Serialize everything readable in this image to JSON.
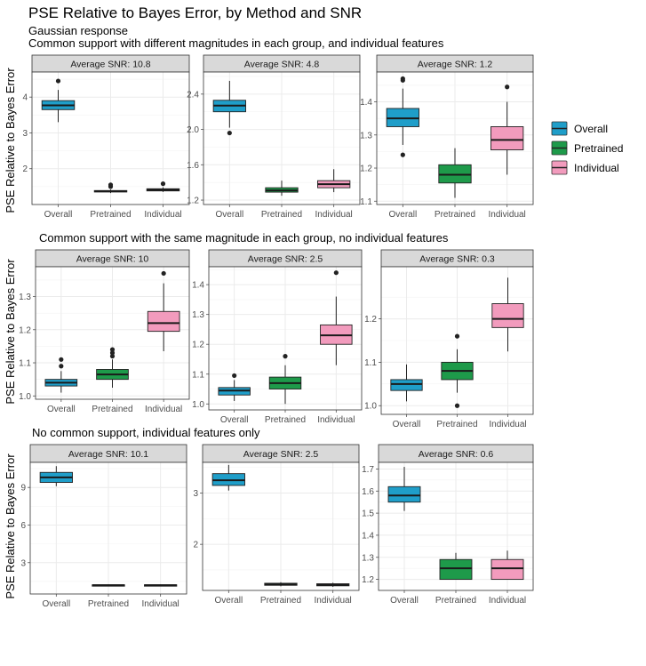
{
  "title": "PSE Relative to Bayes Error, by Method and SNR",
  "subtitle_line1": "Gaussian response",
  "section_labels": [
    "Common support with different magnitudes in each group, and individual features",
    "Common support with the same magnitude in each group, no individual features",
    "No common support, individual features only"
  ],
  "ylabel": "PSE Relative to Bayes Error",
  "legend": [
    {
      "label": "Overall",
      "color": "#1f9ec9"
    },
    {
      "label": "Pretrained",
      "color": "#1e9a4a"
    },
    {
      "label": "Individual",
      "color": "#f29bbd"
    }
  ],
  "colors": {
    "panel_bg": "#ffffff",
    "strip_bg": "#d9d9d9",
    "grid": "#ebebeb",
    "border": "#333333"
  },
  "chart_data": [
    {
      "type": "box",
      "strip": "Average SNR: 10.8",
      "categories": [
        "Overall",
        "Pretrained",
        "Individual"
      ],
      "ylim": [
        1.0,
        4.7
      ],
      "yticks": [
        2,
        3,
        4
      ],
      "ytick_labels": [
        "2",
        "3",
        "4"
      ],
      "boxes": [
        {
          "min": 3.3,
          "q1": 3.65,
          "median": 3.77,
          "q3": 3.9,
          "max": 4.2,
          "outliers": [
            4.45
          ]
        },
        {
          "min": 1.32,
          "q1": 1.35,
          "median": 1.37,
          "q3": 1.39,
          "max": 1.42,
          "outliers": [
            1.5,
            1.55
          ]
        },
        {
          "min": 1.35,
          "q1": 1.38,
          "median": 1.41,
          "q3": 1.44,
          "max": 1.48,
          "outliers": [
            1.58
          ]
        }
      ]
    },
    {
      "type": "box",
      "strip": "Average SNR: 4.8",
      "categories": [
        "Overall",
        "Pretrained",
        "Individual"
      ],
      "ylim": [
        1.15,
        2.65
      ],
      "yticks": [
        1.2,
        1.6,
        2.0,
        2.4
      ],
      "ytick_labels": [
        "1.2",
        "1.6",
        "2.0",
        "2.4"
      ],
      "boxes": [
        {
          "min": 2.02,
          "q1": 2.2,
          "median": 2.27,
          "q3": 2.33,
          "max": 2.55,
          "outliers": [
            1.96
          ]
        },
        {
          "min": 1.25,
          "q1": 1.29,
          "median": 1.31,
          "q3": 1.34,
          "max": 1.42,
          "outliers": []
        },
        {
          "min": 1.29,
          "q1": 1.34,
          "median": 1.38,
          "q3": 1.42,
          "max": 1.55,
          "outliers": []
        }
      ]
    },
    {
      "type": "box",
      "strip": "Average SNR: 1.2",
      "categories": [
        "Overall",
        "Pretrained",
        "Individual"
      ],
      "ylim": [
        1.09,
        1.49
      ],
      "yticks": [
        1.1,
        1.2,
        1.3,
        1.4
      ],
      "ytick_labels": [
        "1.1",
        "1.2",
        "1.3",
        "1.4"
      ],
      "boxes": [
        {
          "min": 1.27,
          "q1": 1.325,
          "median": 1.35,
          "q3": 1.38,
          "max": 1.44,
          "outliers": [
            1.24,
            1.465,
            1.47
          ]
        },
        {
          "min": 1.11,
          "q1": 1.155,
          "median": 1.18,
          "q3": 1.21,
          "max": 1.26,
          "outliers": []
        },
        {
          "min": 1.18,
          "q1": 1.255,
          "median": 1.285,
          "q3": 1.325,
          "max": 1.4,
          "outliers": [
            1.445
          ]
        }
      ]
    },
    {
      "type": "box",
      "strip": "Average SNR: 10",
      "categories": [
        "Overall",
        "Pretrained",
        "Individual"
      ],
      "ylim": [
        0.99,
        1.39
      ],
      "yticks": [
        1.0,
        1.1,
        1.2,
        1.3
      ],
      "ytick_labels": [
        "1.0",
        "1.1",
        "1.2",
        "1.3"
      ],
      "boxes": [
        {
          "min": 1.01,
          "q1": 1.03,
          "median": 1.04,
          "q3": 1.05,
          "max": 1.075,
          "outliers": [
            1.09,
            1.11
          ]
        },
        {
          "min": 1.025,
          "q1": 1.05,
          "median": 1.065,
          "q3": 1.08,
          "max": 1.11,
          "outliers": [
            1.12,
            1.13,
            1.14
          ]
        },
        {
          "min": 1.135,
          "q1": 1.195,
          "median": 1.22,
          "q3": 1.255,
          "max": 1.34,
          "outliers": [
            1.37
          ]
        }
      ]
    },
    {
      "type": "box",
      "strip": "Average SNR: 2.5",
      "categories": [
        "Overall",
        "Pretrained",
        "Individual"
      ],
      "ylim": [
        0.98,
        1.46
      ],
      "yticks": [
        1.0,
        1.1,
        1.2,
        1.3,
        1.4
      ],
      "ytick_labels": [
        "1.0",
        "1.1",
        "1.2",
        "1.3",
        "1.4"
      ],
      "boxes": [
        {
          "min": 1.01,
          "q1": 1.03,
          "median": 1.045,
          "q3": 1.055,
          "max": 1.08,
          "outliers": [
            1.095
          ]
        },
        {
          "min": 1.0,
          "q1": 1.05,
          "median": 1.07,
          "q3": 1.09,
          "max": 1.13,
          "outliers": [
            1.16
          ]
        },
        {
          "min": 1.13,
          "q1": 1.2,
          "median": 1.23,
          "q3": 1.265,
          "max": 1.36,
          "outliers": [
            1.44
          ]
        }
      ]
    },
    {
      "type": "box",
      "strip": "Average SNR: 0.3",
      "categories": [
        "Overall",
        "Pretrained",
        "Individual"
      ],
      "ylim": [
        0.98,
        1.32
      ],
      "yticks": [
        1.0,
        1.1,
        1.2
      ],
      "ytick_labels": [
        "1.0",
        "1.1",
        "1.2"
      ],
      "boxes": [
        {
          "min": 1.01,
          "q1": 1.035,
          "median": 1.05,
          "q3": 1.06,
          "max": 1.095,
          "outliers": []
        },
        {
          "min": 1.03,
          "q1": 1.06,
          "median": 1.08,
          "q3": 1.1,
          "max": 1.13,
          "outliers": [
            1.0,
            1.16
          ]
        },
        {
          "min": 1.125,
          "q1": 1.18,
          "median": 1.2,
          "q3": 1.235,
          "max": 1.295,
          "outliers": []
        }
      ]
    },
    {
      "type": "box",
      "strip": "Average SNR: 10.1",
      "categories": [
        "Overall",
        "Pretrained",
        "Individual"
      ],
      "ylim": [
        0.5,
        11.0
      ],
      "yticks": [
        3,
        6,
        9
      ],
      "ytick_labels": [
        "3",
        "6",
        "9"
      ],
      "boxes": [
        {
          "min": 9.1,
          "q1": 9.4,
          "median": 9.8,
          "q3": 10.2,
          "max": 10.7,
          "outliers": []
        },
        {
          "min": 1.15,
          "q1": 1.18,
          "median": 1.2,
          "q3": 1.23,
          "max": 1.26,
          "outliers": []
        },
        {
          "min": 1.15,
          "q1": 1.18,
          "median": 1.2,
          "q3": 1.23,
          "max": 1.26,
          "outliers": []
        }
      ]
    },
    {
      "type": "box",
      "strip": "Average SNR: 2.5",
      "categories": [
        "Overall",
        "Pretrained",
        "Individual"
      ],
      "ylim": [
        1.1,
        3.6
      ],
      "yticks": [
        2,
        3
      ],
      "ytick_labels": [
        "2",
        "3"
      ],
      "boxes": [
        {
          "min": 3.05,
          "q1": 3.15,
          "median": 3.25,
          "q3": 3.38,
          "max": 3.55,
          "outliers": []
        },
        {
          "min": 1.18,
          "q1": 1.2,
          "median": 1.22,
          "q3": 1.24,
          "max": 1.26,
          "outliers": []
        },
        {
          "min": 1.17,
          "q1": 1.19,
          "median": 1.21,
          "q3": 1.23,
          "max": 1.25,
          "outliers": []
        }
      ]
    },
    {
      "type": "box",
      "strip": "Average SNR: 0.6",
      "categories": [
        "Overall",
        "Pretrained",
        "Individual"
      ],
      "ylim": [
        1.15,
        1.73
      ],
      "yticks": [
        1.2,
        1.3,
        1.4,
        1.5,
        1.6,
        1.7
      ],
      "ytick_labels": [
        "1.2",
        "1.3",
        "1.4",
        "1.5",
        "1.6",
        "1.7"
      ],
      "boxes": [
        {
          "min": 1.51,
          "q1": 1.55,
          "median": 1.58,
          "q3": 1.62,
          "max": 1.71,
          "outliers": []
        },
        {
          "min": 1.2,
          "q1": 1.2,
          "median": 1.25,
          "q3": 1.29,
          "max": 1.32,
          "outliers": []
        },
        {
          "min": 1.2,
          "q1": 1.2,
          "median": 1.25,
          "q3": 1.29,
          "max": 1.33,
          "outliers": []
        }
      ]
    }
  ]
}
